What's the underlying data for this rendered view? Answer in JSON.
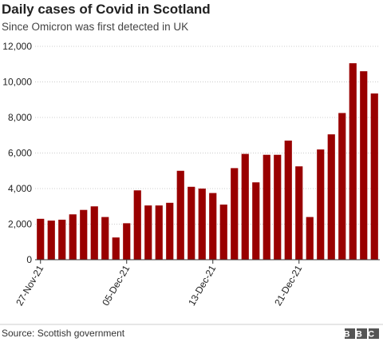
{
  "chart_data": {
    "type": "bar",
    "title": "Daily cases of Covid in Scotland",
    "subtitle": "Since Omicron was first detected in UK",
    "source": "Source: Scottish government",
    "logo": "BBC",
    "categories": [
      "27-Nov-21",
      null,
      null,
      null,
      null,
      null,
      null,
      null,
      "05-Dec-21",
      null,
      null,
      null,
      null,
      null,
      null,
      null,
      "13-Dec-21",
      null,
      null,
      null,
      null,
      null,
      null,
      null,
      "21-Dec-21",
      null,
      null,
      null,
      null,
      null,
      null,
      null
    ],
    "values": [
      2300,
      2200,
      2250,
      2550,
      2800,
      3000,
      2400,
      1250,
      2050,
      3900,
      3050,
      3050,
      3200,
      5000,
      4100,
      4000,
      3750,
      3100,
      5150,
      5950,
      4350,
      5900,
      5900,
      6700,
      5250,
      2400,
      6200,
      7050,
      8250,
      11050,
      10600,
      9350
    ],
    "color": "#990000",
    "ylim": [
      0,
      12000
    ],
    "yticks": [
      0,
      {
        "value": 2000,
        "label": "2,000"
      },
      {
        "value": 4000,
        "label": "4,000"
      },
      {
        "value": 6000,
        "label": "6,000"
      },
      {
        "value": 8000,
        "label": "8,000"
      },
      {
        "value": 10000,
        "label": "10,000"
      },
      {
        "value": 12000,
        "label": "12,000"
      }
    ],
    "grid": true
  }
}
